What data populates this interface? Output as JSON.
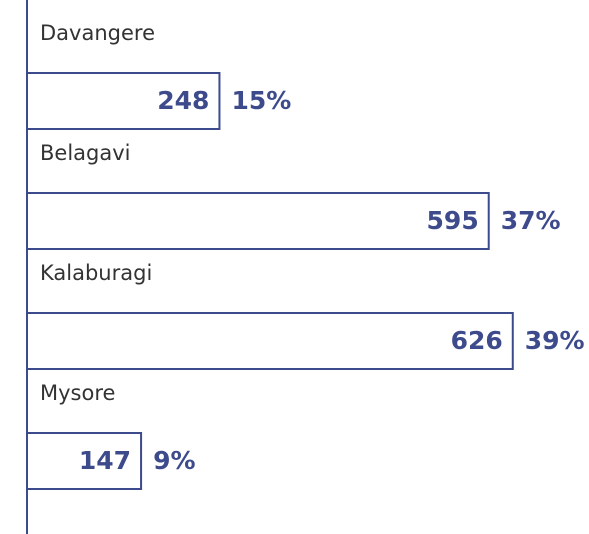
{
  "chart_data": {
    "type": "bar",
    "orientation": "horizontal",
    "categories": [
      "Davangere",
      "Belagavi",
      "Kalaburagi",
      "Mysore"
    ],
    "values": [
      248,
      595,
      626,
      147
    ],
    "shares": [
      15,
      37,
      39,
      9
    ],
    "share_labels": [
      "15%",
      "37%",
      "39%",
      "9%"
    ],
    "color": "#3d4a8c"
  }
}
